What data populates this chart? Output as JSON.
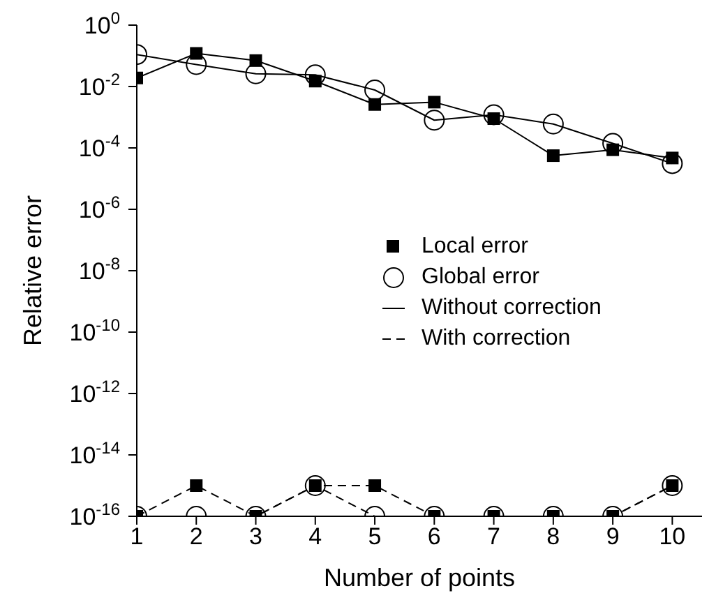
{
  "chart_data": {
    "type": "line",
    "xlabel": "Number of points",
    "ylabel": "Relative error",
    "log": "y",
    "grid": false,
    "legend": "right",
    "x": [
      1,
      2,
      3,
      4,
      5,
      6,
      7,
      8,
      9,
      10
    ],
    "xlim": [
      1,
      10.5
    ],
    "xticks": [
      1,
      2,
      3,
      4,
      5,
      6,
      7,
      8,
      9,
      10
    ],
    "ylim": [
      1e-16,
      1
    ],
    "yticks": [
      {
        "value": 1e-16,
        "label": "10$^{-16}$"
      },
      {
        "value": 1e-14,
        "label": "10$^{-14}$"
      },
      {
        "value": 1e-12,
        "label": "10$^{-12}$"
      },
      {
        "value": 1e-10,
        "label": "10$^{-10}$"
      },
      {
        "value": 1e-08,
        "label": "10$^{-8}$"
      },
      {
        "value": 1e-06,
        "label": "10$^{-6}$"
      },
      {
        "value": 0.0001,
        "label": "10$^{-4}$"
      },
      {
        "value": 0.01,
        "label": "10$^{-2}$"
      },
      {
        "value": 1,
        "label": "10$^{0}$"
      }
    ],
    "annotations": [
      "Without correction",
      "With correction"
    ],
    "series": [
      {
        "name": "Local error",
        "color": "#000000",
        "marker": "square",
        "line_style": "solid",
        "values": [
          0.019,
          0.12,
          0.07,
          0.015,
          0.0026,
          0.0031,
          0.0009,
          5.6e-05,
          8.7e-05,
          4.7e-05
        ]
      },
      {
        "name": "Global error",
        "color": "#000000",
        "marker": "circle",
        "line_style": "solid",
        "values": [
          0.11,
          0.052,
          0.026,
          0.024,
          0.0077,
          0.0008,
          0.0012,
          0.0006,
          0.00014,
          3.1e-05
        ]
      },
      {
        "color": "#000000",
        "marker": "square",
        "line_style": "dashed",
        "values": [
          1e-16,
          1e-15,
          1e-16,
          1e-15,
          1e-15,
          1e-16,
          1e-16,
          1e-16,
          1e-16,
          1e-15
        ]
      },
      {
        "color": "#000000",
        "marker": "circle",
        "line_style": "dashed",
        "values": [
          1e-16,
          1e-16,
          1e-16,
          1e-15,
          1e-16,
          1e-16,
          1e-16,
          1e-16,
          1e-16,
          1e-15
        ]
      }
    ]
  }
}
